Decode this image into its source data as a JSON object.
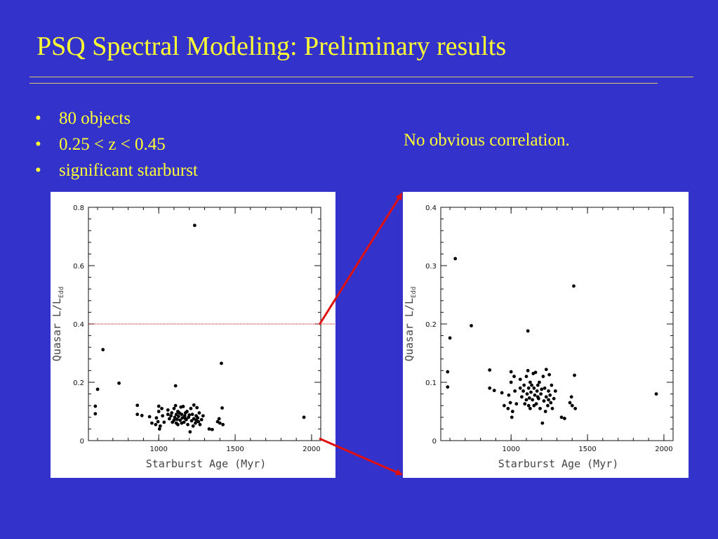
{
  "slide": {
    "title": "PSQ Spectral Modeling: Preliminary results",
    "bullets": [
      "80 objects",
      "0.25 < z < 0.45",
      "significant starburst"
    ],
    "bullet_glyph": "•",
    "note": "No obvious correlation."
  },
  "colors": {
    "background": "#3333cc",
    "text": "#ffff33",
    "rule": "#d9c46a",
    "arrow": "#e01010",
    "threshold_line": "#cc0000"
  },
  "chart_data": [
    {
      "type": "scatter",
      "title": "",
      "xlabel": "Starburst Age (Myr)",
      "ylabel": "Quasar L/L",
      "ylabel_sub": "Edd",
      "xlim": [
        540,
        2060
      ],
      "ylim": [
        0,
        0.8
      ],
      "xticks": [
        1000,
        1500,
        2000
      ],
      "yticks": [
        0,
        0.2,
        0.4,
        0.6,
        0.8
      ],
      "ytick_labels": [
        "0",
        "0.2",
        "0.4",
        "0.6",
        "0.8"
      ],
      "annotations": [
        {
          "type": "hline",
          "y": 0.4,
          "style": "dotted"
        }
      ],
      "grid": false,
      "points": [
        [
          585,
          0.092
        ],
        [
          585,
          0.118
        ],
        [
          600,
          0.176
        ],
        [
          635,
          0.312
        ],
        [
          740,
          0.197
        ],
        [
          860,
          0.121
        ],
        [
          860,
          0.09
        ],
        [
          890,
          0.086
        ],
        [
          940,
          0.082
        ],
        [
          955,
          0.06
        ],
        [
          980,
          0.055
        ],
        [
          985,
          0.078
        ],
        [
          995,
          0.065
        ],
        [
          1000,
          0.118
        ],
        [
          1005,
          0.04
        ],
        [
          1010,
          0.05
        ],
        [
          1020,
          0.11
        ],
        [
          1035,
          0.063
        ],
        [
          1060,
          0.09
        ],
        [
          1070,
          0.075
        ],
        [
          1080,
          0.085
        ],
        [
          1085,
          0.095
        ],
        [
          1090,
          0.063
        ],
        [
          1100,
          0.11
        ],
        [
          1100,
          0.07
        ],
        [
          1105,
          0.08
        ],
        [
          1110,
          0.188
        ],
        [
          1110,
          0.12
        ],
        [
          1115,
          0.09
        ],
        [
          1115,
          0.06
        ],
        [
          1120,
          0.073
        ],
        [
          1125,
          0.1
        ],
        [
          1130,
          0.083
        ],
        [
          1135,
          0.095
        ],
        [
          1140,
          0.07
        ],
        [
          1145,
          0.115
        ],
        [
          1150,
          0.09
        ],
        [
          1150,
          0.06
        ],
        [
          1155,
          0.078
        ],
        [
          1160,
          0.117
        ],
        [
          1165,
          0.063
        ],
        [
          1170,
          0.085
        ],
        [
          1175,
          0.095
        ],
        [
          1180,
          0.072
        ],
        [
          1185,
          0.1
        ],
        [
          1190,
          0.055
        ],
        [
          1195,
          0.08
        ],
        [
          1200,
          0.088
        ],
        [
          1205,
          0.03
        ],
        [
          1210,
          0.11
        ],
        [
          1215,
          0.068
        ],
        [
          1220,
          0.09
        ],
        [
          1225,
          0.05
        ],
        [
          1230,
          0.122
        ],
        [
          1230,
          0.075
        ],
        [
          1235,
          0.738
        ],
        [
          1240,
          0.06
        ],
        [
          1245,
          0.085
        ],
        [
          1250,
          0.113
        ],
        [
          1255,
          0.078
        ],
        [
          1260,
          0.065
        ],
        [
          1265,
          0.095
        ],
        [
          1270,
          0.055
        ],
        [
          1280,
          0.072
        ],
        [
          1290,
          0.085
        ],
        [
          1330,
          0.04
        ],
        [
          1350,
          0.038
        ],
        [
          1385,
          0.065
        ],
        [
          1395,
          0.075
        ],
        [
          1400,
          0.06
        ],
        [
          1410,
          0.265
        ],
        [
          1415,
          0.112
        ],
        [
          1420,
          0.055
        ],
        [
          1950,
          0.08
        ],
        [
          1000,
          0.1
        ],
        [
          1025,
          0.085
        ],
        [
          1060,
          0.105
        ],
        [
          1175,
          0.075
        ],
        [
          1245,
          0.07
        ],
        [
          1125,
          0.055
        ]
      ]
    },
    {
      "type": "scatter",
      "title": "",
      "xlabel": "Starburst Age (Myr)",
      "ylabel": "Quasar L/L",
      "ylabel_sub": "Edd",
      "xlim": [
        540,
        2060
      ],
      "ylim": [
        0,
        0.4
      ],
      "xticks": [
        1000,
        1500,
        2000
      ],
      "yticks": [
        0,
        0.1,
        0.2,
        0.3,
        0.4
      ],
      "ytick_labels": [
        "0",
        "0.1",
        "0.2",
        "0.3",
        "0.4"
      ],
      "grid": false,
      "points": [
        [
          585,
          0.092
        ],
        [
          585,
          0.118
        ],
        [
          600,
          0.176
        ],
        [
          635,
          0.312
        ],
        [
          740,
          0.197
        ],
        [
          860,
          0.121
        ],
        [
          860,
          0.09
        ],
        [
          890,
          0.086
        ],
        [
          940,
          0.082
        ],
        [
          955,
          0.06
        ],
        [
          980,
          0.055
        ],
        [
          985,
          0.078
        ],
        [
          995,
          0.065
        ],
        [
          1000,
          0.118
        ],
        [
          1005,
          0.04
        ],
        [
          1010,
          0.05
        ],
        [
          1020,
          0.11
        ],
        [
          1035,
          0.063
        ],
        [
          1060,
          0.09
        ],
        [
          1070,
          0.075
        ],
        [
          1080,
          0.085
        ],
        [
          1085,
          0.095
        ],
        [
          1090,
          0.063
        ],
        [
          1100,
          0.11
        ],
        [
          1100,
          0.07
        ],
        [
          1105,
          0.08
        ],
        [
          1110,
          0.188
        ],
        [
          1110,
          0.12
        ],
        [
          1115,
          0.09
        ],
        [
          1115,
          0.06
        ],
        [
          1120,
          0.073
        ],
        [
          1125,
          0.1
        ],
        [
          1130,
          0.083
        ],
        [
          1135,
          0.095
        ],
        [
          1140,
          0.07
        ],
        [
          1145,
          0.115
        ],
        [
          1150,
          0.09
        ],
        [
          1150,
          0.06
        ],
        [
          1155,
          0.078
        ],
        [
          1160,
          0.117
        ],
        [
          1165,
          0.063
        ],
        [
          1170,
          0.085
        ],
        [
          1175,
          0.095
        ],
        [
          1180,
          0.072
        ],
        [
          1185,
          0.1
        ],
        [
          1190,
          0.055
        ],
        [
          1195,
          0.08
        ],
        [
          1200,
          0.088
        ],
        [
          1205,
          0.03
        ],
        [
          1210,
          0.11
        ],
        [
          1215,
          0.068
        ],
        [
          1220,
          0.09
        ],
        [
          1225,
          0.05
        ],
        [
          1230,
          0.122
        ],
        [
          1230,
          0.075
        ],
        [
          1240,
          0.06
        ],
        [
          1245,
          0.085
        ],
        [
          1250,
          0.113
        ],
        [
          1255,
          0.078
        ],
        [
          1260,
          0.065
        ],
        [
          1265,
          0.095
        ],
        [
          1270,
          0.055
        ],
        [
          1280,
          0.072
        ],
        [
          1290,
          0.085
        ],
        [
          1330,
          0.04
        ],
        [
          1350,
          0.038
        ],
        [
          1385,
          0.065
        ],
        [
          1395,
          0.075
        ],
        [
          1400,
          0.06
        ],
        [
          1410,
          0.265
        ],
        [
          1415,
          0.112
        ],
        [
          1420,
          0.055
        ],
        [
          1950,
          0.08
        ],
        [
          1000,
          0.1
        ],
        [
          1025,
          0.085
        ],
        [
          1060,
          0.105
        ],
        [
          1175,
          0.075
        ],
        [
          1245,
          0.07
        ],
        [
          1125,
          0.055
        ]
      ]
    }
  ]
}
